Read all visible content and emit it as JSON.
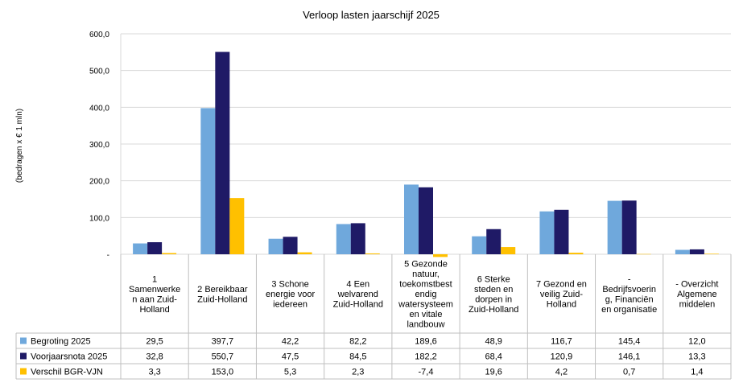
{
  "chart_data": {
    "type": "bar",
    "title": "Verloop lasten jaarschijf 2025",
    "ylabel": "(bedragen x € 1 mln)",
    "xlabel": "",
    "ylim": [
      0,
      600
    ],
    "yticks": [
      "-",
      "100,0",
      "200,0",
      "300,0",
      "400,0",
      "500,0",
      "600,0"
    ],
    "grid": true,
    "legend": "data-table-left",
    "categories": [
      "1 Samenwerken aan Zuid-Holland",
      "2 Bereikbaar Zuid-Holland",
      "3 Schone energie voor iedereen",
      "4 Een welvarend Zuid-Holland",
      "5 Gezonde natuur, toekomstbestendig watersysteem en vitale landbouw",
      "6 Sterke steden en dorpen in Zuid-Holland",
      "7 Gezond en veilig Zuid-Holland",
      "- Bedrijfsvoering, Financiën en organisatie",
      "- Overzicht Algemene middelen"
    ],
    "category_lines": [
      [
        "1",
        "Samenwerke",
        "n aan Zuid-",
        "Holland"
      ],
      [
        "2 Bereikbaar",
        "Zuid-Holland"
      ],
      [
        "3 Schone",
        "energie voor",
        "iedereen"
      ],
      [
        "4 Een",
        "welvarend",
        "Zuid-Holland"
      ],
      [
        "5 Gezonde",
        "natuur,",
        "toekomstbest",
        "endig",
        "watersysteem",
        "en vitale",
        "landbouw"
      ],
      [
        "6 Sterke",
        "steden en",
        "dorpen in",
        "Zuid-Holland"
      ],
      [
        "7 Gezond en",
        "veilig Zuid-",
        "Holland"
      ],
      [
        "-",
        "Bedrijfsvoerin",
        "g, Financiën",
        "en organisatie"
      ],
      [
        "- Overzicht",
        "Algemene",
        "middelen"
      ]
    ],
    "series": [
      {
        "name": "Begroting 2025",
        "color": "#6fa8dc",
        "values": [
          29.5,
          397.7,
          42.2,
          82.2,
          189.6,
          48.9,
          116.7,
          145.4,
          12.0
        ],
        "labels": [
          "29,5",
          "397,7",
          "42,2",
          "82,2",
          "189,6",
          "48,9",
          "116,7",
          "145,4",
          "12,0"
        ]
      },
      {
        "name": "Voorjaarsnota 2025",
        "color": "#1f1a66",
        "values": [
          32.8,
          550.7,
          47.5,
          84.5,
          182.2,
          68.4,
          120.9,
          146.1,
          13.3
        ],
        "labels": [
          "32,8",
          "550,7",
          "47,5",
          "84,5",
          "182,2",
          "68,4",
          "120,9",
          "146,1",
          "13,3"
        ]
      },
      {
        "name": "Verschil BGR-VJN",
        "color": "#ffc000",
        "values": [
          3.3,
          153.0,
          5.3,
          2.3,
          -7.4,
          19.6,
          4.2,
          0.7,
          1.4
        ],
        "labels": [
          "3,3",
          "153,0",
          "5,3",
          "2,3",
          "-7,4",
          "19,6",
          "4,2",
          "0,7",
          "1,4"
        ]
      }
    ]
  }
}
